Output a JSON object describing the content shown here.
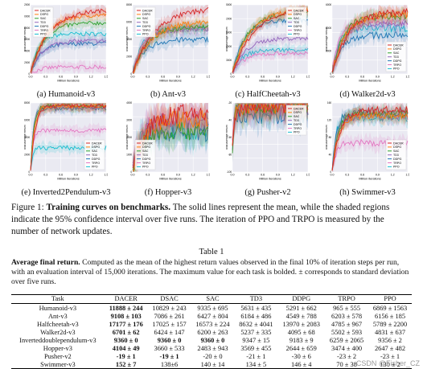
{
  "colors": {
    "DACER": "#d62728",
    "DSAC": "#ff7f0e",
    "SAC": "#2ca02c",
    "TD3": "#9467bd",
    "DDPG": "#1f77b4",
    "TRPO": "#e377c2",
    "PPO": "#17becf",
    "DSAC_T": "#bcbd22"
  },
  "panels": [
    {
      "caption": "(a) Humanoid-v3",
      "xlabel": "Million iterations",
      "ylabel": "Total Average Return",
      "xticks": [
        "0.0",
        "0.3",
        "0.6",
        "0.9",
        "1.2",
        "1.5"
      ],
      "yticks": [
        "0",
        "2000",
        "4000",
        "6000",
        "8000",
        "10000",
        "12000"
      ],
      "legend": [
        "DACER",
        "DSPG",
        "SAC",
        "TD3",
        "DDPG",
        "TRPO",
        "PPO"
      ]
    },
    {
      "caption": "(b) Ant-v3",
      "xlabel": "Million iterations",
      "ylabel": "Total Average Return",
      "xticks": [
        "0.0",
        "0.3",
        "0.6",
        "0.9",
        "1.2",
        "1.5"
      ],
      "yticks": [
        "0",
        "2000",
        "4000",
        "6000",
        "8000"
      ],
      "legend": [
        "DACER",
        "DSPG",
        "SAC",
        "TD3",
        "DDPG",
        "TRPO",
        "PPO"
      ]
    },
    {
      "caption": "(c) HalfCheetah-v3",
      "xlabel": "Million iterations",
      "ylabel": "Total Average Return",
      "xticks": [
        "0.0",
        "0.3",
        "0.6",
        "0.9",
        "1.2",
        "1.5"
      ],
      "yticks": [
        "0",
        "3000",
        "6000",
        "9000",
        "12000",
        "15000"
      ],
      "legend": [
        "DACER",
        "DSPG",
        "SAC",
        "TD3",
        "DDPG",
        "TRPO",
        "PPO"
      ]
    },
    {
      "caption": "(d) Walker2d-v3",
      "xlabel": "Million iterations",
      "ylabel": "Total Average Return",
      "xticks": [
        "0.0",
        "0.3",
        "0.6",
        "0.9",
        "1.2",
        "1.5"
      ],
      "yticks": [
        "0",
        "2000",
        "4000",
        "6000"
      ],
      "legend": [
        "DACER",
        "DSPG",
        "SAC",
        "TD3",
        "DDPG",
        "TRPO",
        "PPO"
      ]
    },
    {
      "caption": "(e) Inverted2Pendulum-v3",
      "xlabel": "Million iterations",
      "ylabel": "Total Average Return",
      "xticks": [
        "0.0",
        "0.3",
        "0.6",
        "0.9",
        "1.2",
        "1.5"
      ],
      "yticks": [
        "0",
        "2000",
        "4000",
        "6000",
        "8000"
      ],
      "legend": [
        "DACER",
        "DSPG",
        "SAC",
        "TD3",
        "DDPG",
        "TRPO",
        "PPO"
      ]
    },
    {
      "caption": "(f) Hopper-v3",
      "xlabel": "Million iterations",
      "ylabel": "Total Average Return",
      "xticks": [
        "0.0",
        "0.3",
        "0.6",
        "0.9",
        "1.2",
        "1.5"
      ],
      "yticks": [
        "0",
        "1000",
        "2000",
        "3000",
        "4000"
      ],
      "legend": [
        "DACER",
        "DSPG",
        "SAC",
        "TD3",
        "DDPG",
        "TRPO",
        "PPO"
      ]
    },
    {
      "caption": "(g) Pusher-v2",
      "xlabel": "Million iterations",
      "ylabel": "Total Average Return",
      "xticks": [
        "0.0",
        "0.3",
        "0.6",
        "0.9",
        "1.2",
        "1.5"
      ],
      "yticks": [
        "-100",
        "-80",
        "-60",
        "-40",
        "-20"
      ],
      "legend": [
        "DACER",
        "DSPG",
        "SAC",
        "TD3",
        "DDPG",
        "TRPO",
        "PPO"
      ]
    },
    {
      "caption": "(h) Swimmer-v3",
      "xlabel": "Million iterations",
      "ylabel": "Total Average Return",
      "xticks": [
        "0.0",
        "0.3",
        "0.6",
        "0.9",
        "1.2",
        "1.5"
      ],
      "yticks": [
        "0",
        "40",
        "80",
        "120",
        "160"
      ],
      "legend": [
        "DACER",
        "DSPG",
        "SAC",
        "TD3",
        "DDPG",
        "TRPO",
        "PPO"
      ]
    }
  ],
  "figure_caption": {
    "prefix": "Figure 1: ",
    "bold": "Training curves on benchmarks.",
    "text": " The solid lines represent the mean, while the shaded regions indicate the 95% confidence interval over five runs. The iteration of PPO and TRPO is measured by the number of network updates."
  },
  "table": {
    "title": "Table 1",
    "bold": "Average final return.",
    "desc": " Computed as the mean of the highest return values observed in the final 10% of iteration steps per run, with an evaluation interval of 15,000 iterations. The maximum value for each task is bolded. ± corresponds to standard deviation over five runs.",
    "headers": [
      "Task",
      "DACER",
      "DSAC",
      "SAC",
      "TD3",
      "DDPG",
      "TRPO",
      "PPO"
    ],
    "rows": [
      {
        "task": "Humanoid-v3",
        "vals": [
          "11888 ± 244",
          "10829 ± 243",
          "9335 ± 695",
          "5631 ± 435",
          "5291 ± 662",
          "965 ± 555",
          "6869 ± 1563"
        ],
        "bold": [
          0
        ]
      },
      {
        "task": "Ant-v3",
        "vals": [
          "9108 ± 103",
          "7086 ± 261",
          "6427 ± 804",
          "6184 ± 486",
          "4549 ± 788",
          "6203 ± 578",
          "6156 ± 185"
        ],
        "bold": [
          0
        ]
      },
      {
        "task": "Halfcheetah-v3",
        "vals": [
          "17177 ± 176",
          "17025 ± 157",
          "16573 ± 224",
          "8632 ± 4041",
          "13970 ± 2083",
          "4785 ± 967",
          "5789 ± 2200"
        ],
        "bold": [
          0
        ]
      },
      {
        "task": "Walker2d-v3",
        "vals": [
          "6701 ± 62",
          "6424 ± 147",
          "6200 ± 263",
          "5237 ± 335",
          "4095 ± 68",
          "5502 ± 593",
          "4831 ± 637"
        ],
        "bold": [
          0
        ]
      },
      {
        "task": "Inverteddoublependulum-v3",
        "vals": [
          "9360 ± 0",
          "9360 ± 0",
          "9360 ± 0",
          "9347 ± 15",
          "9183 ± 9",
          "6259 ± 2065",
          "9356 ± 2"
        ],
        "bold": [
          0,
          1,
          2
        ]
      },
      {
        "task": "Hopper-v3",
        "vals": [
          "4104 ± 49",
          "3660 ± 533",
          "2483 ± 943",
          "3569 ± 455",
          "2644 ± 659",
          "3474 ± 400",
          "2647 ± 482"
        ],
        "bold": [
          0
        ]
      },
      {
        "task": "Pusher-v2",
        "vals": [
          "-19 ± 1",
          "-19 ± 1",
          "-20 ± 0",
          "-21 ± 1",
          "-30 ± 6",
          "-23 ± 2",
          "-23 ± 1"
        ],
        "bold": [
          0,
          1
        ]
      },
      {
        "task": "Swimmer-v3",
        "vals": [
          "152 ± 7",
          "138±6",
          "140 ± 14",
          "134 ± 5",
          "146 ± 4",
          "70 ± 38",
          "130 ± 2"
        ],
        "bold": [
          0
        ]
      }
    ]
  },
  "watermark": "CSDN @Fisher_CZ"
}
